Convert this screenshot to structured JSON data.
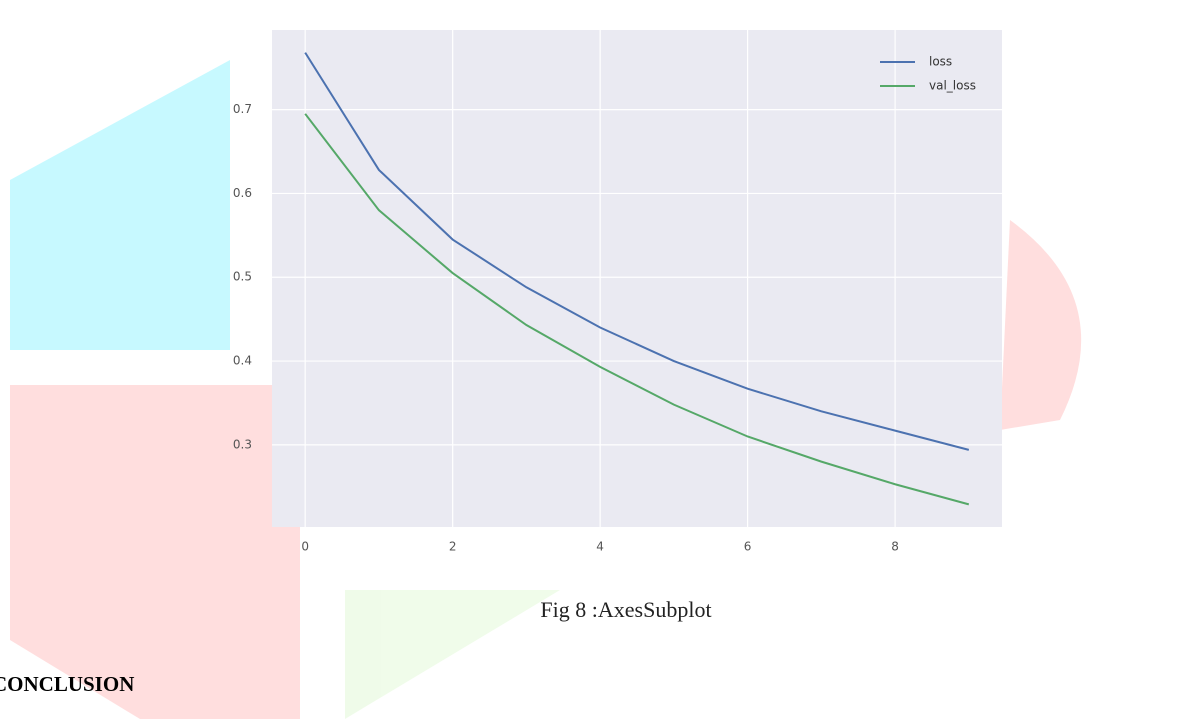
{
  "chart_data": {
    "type": "line",
    "x": [
      0,
      1,
      2,
      3,
      4,
      5,
      6,
      7,
      8,
      9
    ],
    "series": [
      {
        "name": "loss",
        "color": "#4c72b0",
        "values": [
          0.768,
          0.628,
          0.545,
          0.488,
          0.44,
          0.4,
          0.367,
          0.34,
          0.317,
          0.294
        ]
      },
      {
        "name": "val_loss",
        "color": "#55a868",
        "values": [
          0.695,
          0.58,
          0.505,
          0.443,
          0.393,
          0.348,
          0.31,
          0.28,
          0.253,
          0.229
        ]
      }
    ],
    "xlim": [
      -0.45,
      9.45
    ],
    "ylim": [
      0.202,
      0.795
    ],
    "xticks": [
      0,
      2,
      4,
      6,
      8
    ],
    "yticks": [
      0.3,
      0.4,
      0.5,
      0.6,
      0.7
    ],
    "grid": true,
    "legend": "upper right"
  },
  "caption": "Fig 8 :AxesSubplot",
  "heading": "CONCLUSION"
}
